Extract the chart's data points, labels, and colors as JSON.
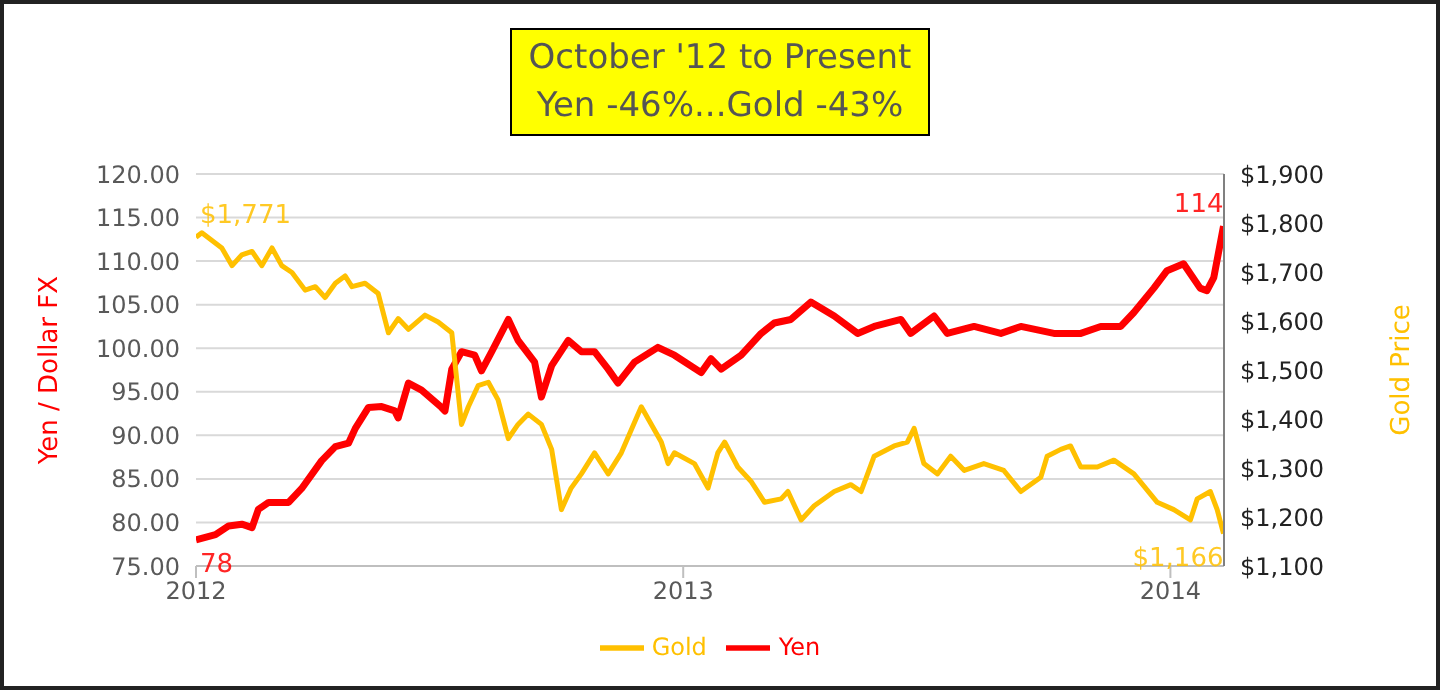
{
  "chart_data": {
    "type": "line",
    "title": "October '12 to Present",
    "subtitle": "Yen -46%...Gold -43%",
    "ylabel": "Yen / Dollar FX",
    "y2label": "Gold Price",
    "xlim": [
      2012,
      2014.11
    ],
    "xticks": [
      2012,
      2013,
      2014
    ],
    "ylim": [
      75,
      120
    ],
    "yticks": [
      {
        "value": 75,
        "label": "75.00"
      },
      {
        "value": 80,
        "label": "80.00"
      },
      {
        "value": 85,
        "label": "85.00"
      },
      {
        "value": 90,
        "label": "90.00"
      },
      {
        "value": 95,
        "label": "95.00"
      },
      {
        "value": 100,
        "label": "100.00"
      },
      {
        "value": 105,
        "label": "105.00"
      },
      {
        "value": 110,
        "label": "110.00"
      },
      {
        "value": 115,
        "label": "115.00"
      },
      {
        "value": 120,
        "label": "120.00"
      }
    ],
    "y2lim": [
      1100,
      1900
    ],
    "y2ticks": [
      {
        "value": 1100,
        "label": "$1,100"
      },
      {
        "value": 1200,
        "label": "$1,200"
      },
      {
        "value": 1300,
        "label": "$1,300"
      },
      {
        "value": 1400,
        "label": "$1,400"
      },
      {
        "value": 1500,
        "label": "$1,500"
      },
      {
        "value": 1600,
        "label": "$1,600"
      },
      {
        "value": 1700,
        "label": "$1,700"
      },
      {
        "value": 1800,
        "label": "$1,800"
      },
      {
        "value": 1900,
        "label": "$1,900"
      }
    ],
    "grid": "y",
    "legend": "bottom",
    "marker": "none",
    "line_style": "solid",
    "series": [
      {
        "name": "Yen",
        "color": "#ff0000",
        "axis": "y",
        "x": [
          2012.0,
          2012.04,
          2012.067,
          2012.094,
          2012.115,
          2012.128,
          2012.149,
          2012.19,
          2012.217,
          2012.258,
          2012.286,
          2012.313,
          2012.327,
          2012.354,
          2012.381,
          2012.408,
          2012.415,
          2012.436,
          2012.463,
          2012.504,
          2012.511,
          2012.525,
          2012.545,
          2012.572,
          2012.586,
          2012.607,
          2012.641,
          2012.661,
          2012.695,
          2012.709,
          2012.73,
          2012.764,
          2012.791,
          2012.818,
          2012.846,
          2012.866,
          2012.9,
          2012.948,
          2012.982,
          2013.037,
          2013.057,
          2013.078,
          2013.119,
          2013.16,
          2013.187,
          2013.221,
          2013.262,
          2013.31,
          2013.358,
          2013.392,
          2013.447,
          2013.467,
          2013.515,
          2013.542,
          2013.597,
          2013.652,
          2013.693,
          2013.761,
          2013.816,
          2013.857,
          2013.898,
          2013.925,
          2013.966,
          2013.993,
          2014.027,
          2014.061,
          2014.075,
          2014.089,
          2014.109
        ],
        "values": [
          78,
          78.6,
          79.6,
          79.8,
          79.4,
          81.5,
          82.3,
          82.3,
          83.9,
          87.1,
          88.7,
          89.1,
          90.8,
          93.2,
          93.3,
          92.8,
          92,
          96,
          95.2,
          93.2,
          92.8,
          97.6,
          99.6,
          99.2,
          97.4,
          99.6,
          103.3,
          100.9,
          98.4,
          94.4,
          98,
          100.9,
          99.6,
          99.6,
          97.6,
          96,
          98.4,
          100.1,
          99.2,
          97.2,
          98.8,
          97.6,
          99.2,
          101.7,
          102.9,
          103.3,
          105.3,
          103.7,
          101.7,
          102.5,
          103.3,
          101.7,
          103.7,
          101.7,
          102.5,
          101.7,
          102.5,
          101.7,
          101.7,
          102.5,
          102.5,
          104.1,
          106.9,
          108.9,
          109.7,
          106.9,
          106.6,
          108.1,
          114
        ],
        "value_labels": [
          "78",
          null,
          null,
          null,
          null,
          null,
          null,
          null,
          null,
          null,
          null,
          null,
          null,
          null,
          null,
          null,
          null,
          null,
          null,
          null,
          null,
          null,
          null,
          null,
          null,
          null,
          null,
          null,
          null,
          null,
          null,
          null,
          null,
          null,
          null,
          null,
          null,
          null,
          null,
          null,
          null,
          null,
          null,
          null,
          null,
          null,
          null,
          null,
          null,
          null,
          null,
          null,
          null,
          null,
          null,
          null,
          null,
          null,
          null,
          null,
          null,
          null,
          null,
          null,
          null,
          null,
          null,
          null,
          "114"
        ]
      },
      {
        "name": "Gold",
        "color": "#ffc000",
        "axis": "y2",
        "x": [
          2012.0,
          2012.012,
          2012.053,
          2012.074,
          2012.094,
          2012.115,
          2012.135,
          2012.156,
          2012.176,
          2012.197,
          2012.224,
          2012.245,
          2012.265,
          2012.286,
          2012.306,
          2012.32,
          2012.347,
          2012.374,
          2012.395,
          2012.415,
          2012.436,
          2012.47,
          2012.497,
          2012.525,
          2012.545,
          2012.559,
          2012.579,
          2012.6,
          2012.62,
          2012.641,
          2012.661,
          2012.682,
          2012.709,
          2012.73,
          2012.75,
          2012.77,
          2012.791,
          2012.818,
          2012.846,
          2012.873,
          2012.914,
          2012.955,
          2012.969,
          2012.982,
          2013.023,
          2013.051,
          2013.071,
          2013.085,
          2013.112,
          2013.139,
          2013.167,
          2013.201,
          2013.215,
          2013.242,
          2013.269,
          2013.31,
          2013.344,
          2013.365,
          2013.392,
          2013.433,
          2013.46,
          2013.474,
          2013.494,
          2013.522,
          2013.549,
          2013.577,
          2013.617,
          2013.658,
          2013.693,
          2013.734,
          2013.747,
          2013.775,
          2013.795,
          2013.816,
          2013.85,
          2013.884,
          2013.925,
          2013.973,
          2014.007,
          2014.041,
          2014.055,
          2014.082,
          2014.096,
          2014.109
        ],
        "values": [
          1771,
          1780,
          1749,
          1713,
          1735,
          1742,
          1713,
          1749,
          1713,
          1699,
          1663,
          1670,
          1648,
          1677,
          1692,
          1670,
          1677,
          1656,
          1576,
          1605,
          1583,
          1612,
          1598,
          1576,
          1389,
          1425,
          1468,
          1475,
          1439,
          1360,
          1389,
          1410,
          1389,
          1338,
          1215,
          1259,
          1288,
          1331,
          1288,
          1331,
          1425,
          1353,
          1309,
          1331,
          1309,
          1259,
          1331,
          1353,
          1302,
          1273,
          1230,
          1237,
          1252,
          1194,
          1223,
          1252,
          1266,
          1252,
          1324,
          1345,
          1353,
          1381,
          1309,
          1288,
          1324,
          1295,
          1309,
          1295,
          1252,
          1281,
          1324,
          1338,
          1345,
          1302,
          1302,
          1316,
          1288,
          1230,
          1215,
          1194,
          1237,
          1252,
          1215,
          1166
        ],
        "value_labels": [
          "$1,771",
          null,
          null,
          null,
          null,
          null,
          null,
          null,
          null,
          null,
          null,
          null,
          null,
          null,
          null,
          null,
          null,
          null,
          null,
          null,
          null,
          null,
          null,
          null,
          null,
          null,
          null,
          null,
          null,
          null,
          null,
          null,
          null,
          null,
          null,
          null,
          null,
          null,
          null,
          null,
          null,
          null,
          null,
          null,
          null,
          null,
          null,
          null,
          null,
          null,
          null,
          null,
          null,
          null,
          null,
          null,
          null,
          null,
          null,
          null,
          null,
          null,
          null,
          null,
          null,
          null,
          null,
          null,
          null,
          null,
          null,
          null,
          null,
          null,
          null,
          null,
          null,
          null,
          null,
          null,
          null,
          null,
          null,
          "$1,166"
        ]
      }
    ]
  }
}
